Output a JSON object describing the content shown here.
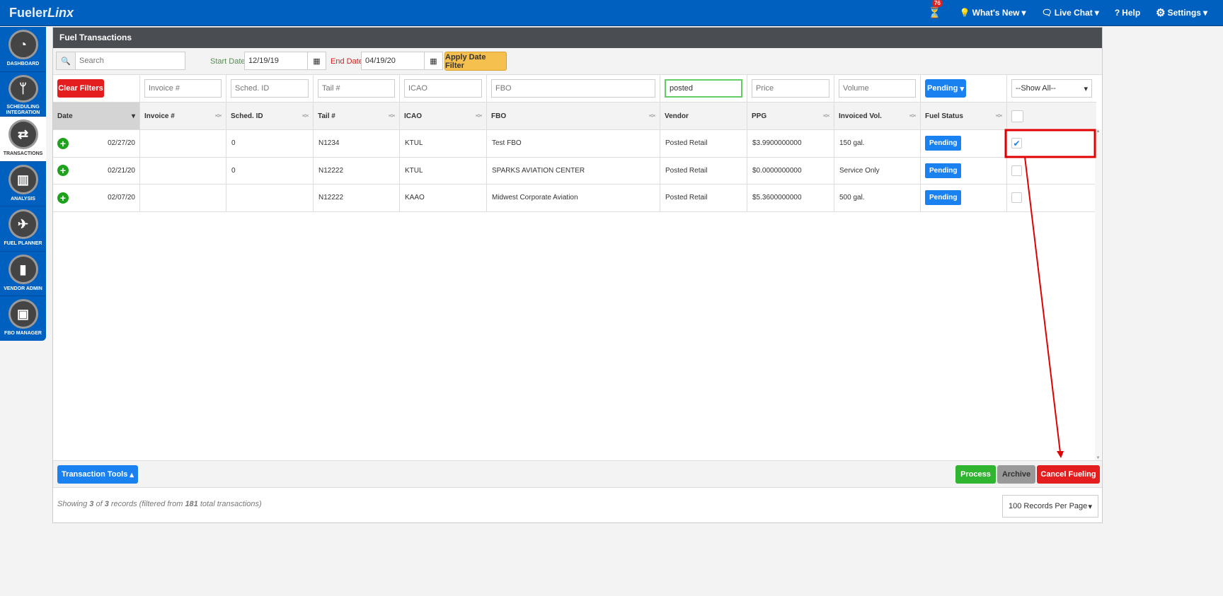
{
  "app": {
    "logo_a": "Fueler",
    "logo_b": "Linx"
  },
  "topnav": {
    "badge": "76",
    "whats_new": "What's New",
    "live_chat": "Live Chat",
    "help": "Help",
    "settings": "Settings"
  },
  "sidebar": [
    {
      "label": "DASHBOARD",
      "icon": "gauge"
    },
    {
      "label": "SCHEDULING INTEGRATION",
      "icon": "branch"
    },
    {
      "label": "TRANSACTIONS",
      "icon": "swap"
    },
    {
      "label": "ANALYSIS",
      "icon": "bar-chart"
    },
    {
      "label": "FUEL PLANNER",
      "icon": "plane"
    },
    {
      "label": "VENDOR ADMIN",
      "icon": "file"
    },
    {
      "label": "FBO MANAGER",
      "icon": "briefcase"
    }
  ],
  "page": {
    "title": "Fuel Transactions"
  },
  "toolbar": {
    "search_placeholder": "Search",
    "start_label": "Start Date",
    "start_value": "12/19/19",
    "end_label": "End Date",
    "end_value": "04/19/20",
    "apply": "Apply Date Filter"
  },
  "filters": {
    "clear": "Clear Filters",
    "invoice": "Invoice #",
    "sched": "Sched. ID",
    "tail": "Tail #",
    "icao": "ICAO",
    "fbo": "FBO",
    "vendor_value": "posted",
    "price": "Price",
    "volume": "Volume",
    "status": "Pending",
    "show": "--Show All--"
  },
  "columns": [
    "Date",
    "Invoice #",
    "Sched. ID",
    "Tail #",
    "ICAO",
    "FBO",
    "Vendor",
    "PPG",
    "Invoiced Vol.",
    "Fuel Status"
  ],
  "rows": [
    {
      "date": "02/27/20",
      "invoice": "",
      "sched": "0",
      "tail": "N1234",
      "icao": "KTUL",
      "fbo": "Test FBO",
      "vendor": "Posted Retail",
      "ppg": "$3.9900000000",
      "vol": "150 gal.",
      "status": "Pending",
      "checked": true
    },
    {
      "date": "02/21/20",
      "invoice": "",
      "sched": "0",
      "tail": "N12222",
      "icao": "KTUL",
      "fbo": "SPARKS AVIATION CENTER",
      "vendor": "Posted Retail",
      "ppg": "$0.0000000000",
      "vol": "Service Only",
      "status": "Pending",
      "checked": false
    },
    {
      "date": "02/07/20",
      "invoice": "",
      "sched": "",
      "tail": "N12222",
      "icao": "KAAO",
      "fbo": "Midwest Corporate Aviation",
      "vendor": "Posted Retail",
      "ppg": "$5.3600000000",
      "vol": "500 gal.",
      "status": "Pending",
      "checked": false
    }
  ],
  "footer": {
    "tools": "Transaction Tools",
    "process": "Process",
    "archive": "Archive",
    "cancel": "Cancel Fueling",
    "showing": "Showing",
    "shown": "3",
    "of": "of",
    "filtered": "3",
    "records": "records (filtered from",
    "total": "181",
    "total_suffix": "total transactions)",
    "per_page": "100 Records Per Page"
  },
  "colors": {
    "brand": "#0060c0",
    "annotation": "#e00000"
  }
}
